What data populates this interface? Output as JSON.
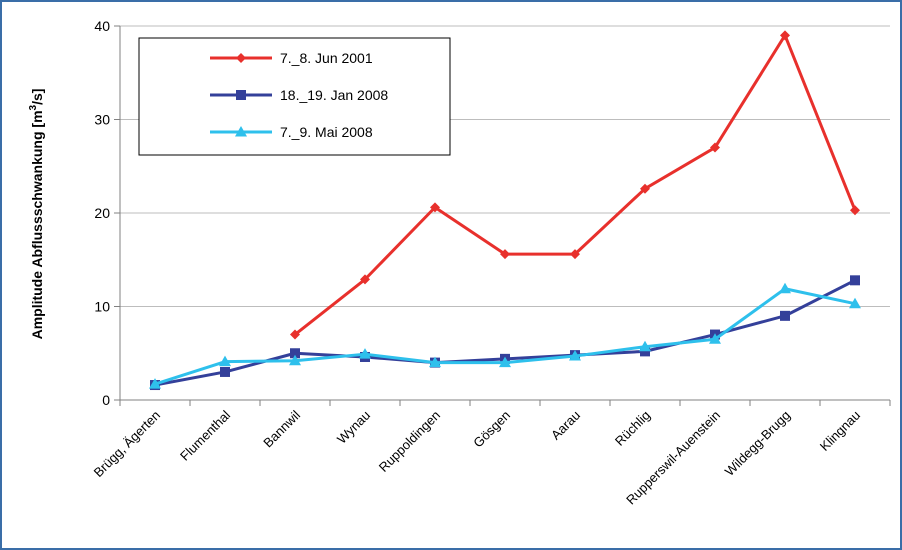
{
  "colors": {
    "frame": "#3a6ea8",
    "grid": "#bdbdbd",
    "axis": "#808080"
  },
  "chart_data": {
    "type": "line",
    "title": "",
    "xlabel": "",
    "ylabel_main": "Amplitude Abflussschwankung [m",
    "ylabel_sup": "3",
    "ylabel_end": "/s]",
    "ylim": [
      0,
      40
    ],
    "yticks": [
      0,
      10,
      20,
      30,
      40
    ],
    "grid": "horizontal",
    "legend_position": "top-left",
    "categories": [
      "Brügg, Ägerten",
      "Flumenthal",
      "Bannwil",
      "Wynau",
      "Ruppoldingen",
      "Gösgen",
      "Aarau",
      "Rüchlig",
      "Rupperswil-Auenstein",
      "Wildegg-Brugg",
      "Klingnau"
    ],
    "series": [
      {
        "name": "7._8. Jun 2001",
        "color": "#e8302c",
        "marker": "diamond",
        "values": [
          null,
          null,
          7.0,
          12.9,
          20.6,
          15.6,
          15.6,
          22.6,
          27.0,
          39.0,
          20.3
        ]
      },
      {
        "name": "18._19. Jan 2008",
        "color": "#34409a",
        "marker": "square",
        "values": [
          1.6,
          3.0,
          5.0,
          4.6,
          4.0,
          4.4,
          4.8,
          5.2,
          7.0,
          9.0,
          12.8
        ]
      },
      {
        "name": "7._9. Mai 2008",
        "color": "#2ec0ec",
        "marker": "triangle",
        "values": [
          1.7,
          4.1,
          4.2,
          4.9,
          4.0,
          4.0,
          4.7,
          5.7,
          6.5,
          11.9,
          10.3
        ]
      }
    ]
  }
}
